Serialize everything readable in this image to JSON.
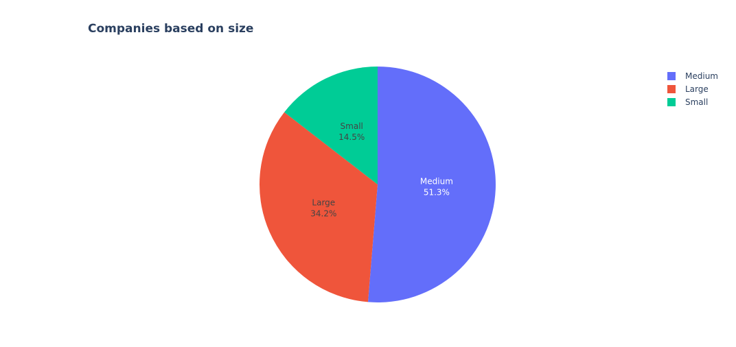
{
  "chart_data": {
    "type": "pie",
    "title": "Companies based on size",
    "labels": [
      "Medium",
      "Large",
      "Small"
    ],
    "percent_labels": [
      "51.3%",
      "34.2%",
      "14.5%"
    ],
    "values": [
      51.3,
      34.2,
      14.5
    ],
    "colors": [
      "#636efa",
      "#ef553b",
      "#00cc96"
    ],
    "label_text_colors": [
      "#ffffff",
      "#444444",
      "#444444"
    ],
    "direction": "clockwise",
    "start_angle_deg": 90,
    "legend": {
      "position": "top-right",
      "entries": [
        "Medium",
        "Large",
        "Small"
      ]
    }
  }
}
